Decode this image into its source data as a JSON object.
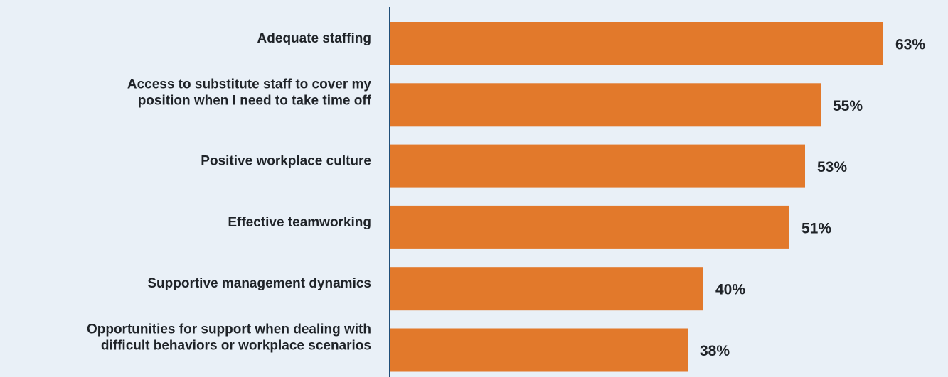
{
  "chart_data": {
    "type": "bar",
    "orientation": "horizontal",
    "categories": [
      [
        "Adequate staffing"
      ],
      [
        "Access to substitute staff to cover my",
        "position when I need to take time off"
      ],
      [
        "Positive workplace culture"
      ],
      [
        "Effective teamworking"
      ],
      [
        "Supportive management dynamics"
      ],
      [
        "Opportunities for support when dealing with",
        "difficult behaviors or workplace scenarios"
      ]
    ],
    "values": [
      63,
      55,
      53,
      51,
      40,
      38
    ],
    "value_labels": [
      "63%",
      "55%",
      "53%",
      "51%",
      "40%",
      "38%"
    ],
    "xlim": [
      0,
      100
    ],
    "grid": false,
    "legend": "none",
    "colors": {
      "bar": "#e2792b",
      "axis": "#1f4e79",
      "background": "#e9f0f7",
      "text": "#1f2328"
    }
  }
}
